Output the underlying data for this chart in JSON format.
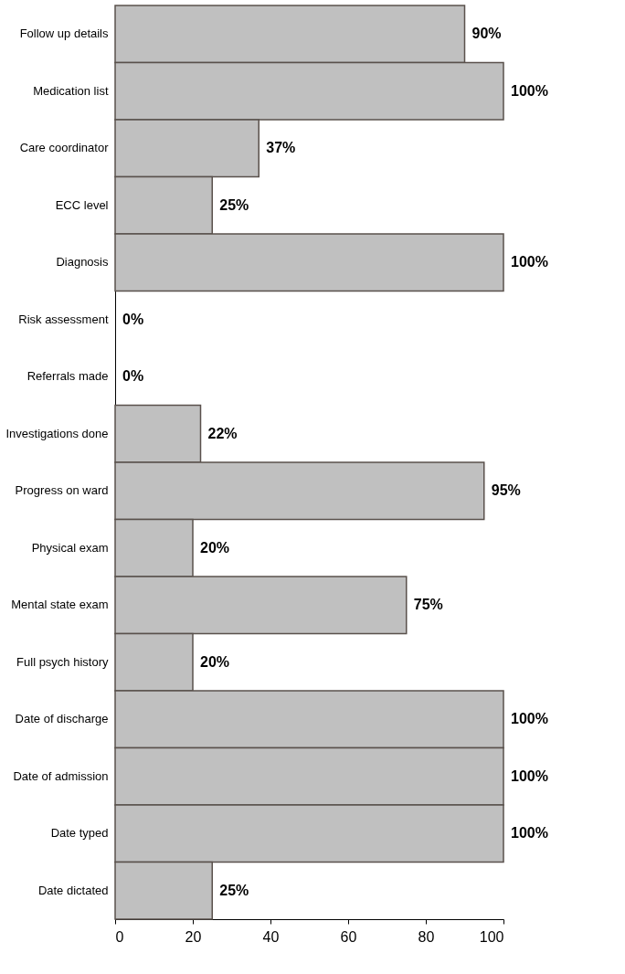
{
  "chart_data": {
    "type": "bar",
    "orientation": "horizontal",
    "categories": [
      "Follow up details",
      "Medication list",
      "Care coordinator",
      "ECC level",
      "Diagnosis",
      "Risk assessment",
      "Referrals made",
      "Investigations done",
      "Progress on ward",
      "Physical exam",
      "Mental state exam",
      "Full psych history",
      "Date of discharge",
      "Date of admission",
      "Date typed",
      "Date dictated"
    ],
    "values": [
      90,
      100,
      37,
      25,
      100,
      0,
      0,
      22,
      95,
      20,
      75,
      20,
      100,
      100,
      100,
      25
    ],
    "value_labels": [
      "90%",
      "100%",
      "37%",
      "25%",
      "100%",
      "0%",
      "0%",
      "22%",
      "95%",
      "20%",
      "75%",
      "20%",
      "100%",
      "100%",
      "100%",
      "25%"
    ],
    "color": "#c0c0c0",
    "xlim": [
      0,
      100
    ],
    "xticks": [
      0,
      20,
      40,
      60,
      80,
      100
    ],
    "grid": false
  }
}
